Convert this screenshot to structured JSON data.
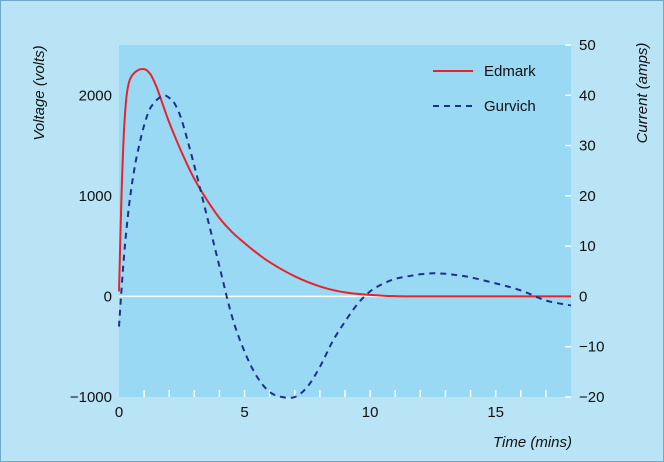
{
  "chart_data": {
    "type": "line",
    "xlabel": "Time (mins)",
    "ylabel_left": "Voltage (volts)",
    "ylabel_right": "Current (amps)",
    "xlim": [
      0,
      18
    ],
    "ylim_left": [
      -1000,
      2500
    ],
    "ylim_right": [
      -20,
      50
    ],
    "x_ticks": [
      0,
      5,
      10,
      15
    ],
    "y_ticks_left": [
      -1000,
      0,
      1000,
      2000
    ],
    "y_ticks_left_labels": [
      "−1000",
      "0",
      "1000",
      "2000"
    ],
    "y_ticks_right": [
      -20,
      -10,
      0,
      10,
      20,
      30,
      40,
      50
    ],
    "y_ticks_right_labels": [
      "−20",
      "−10",
      "0",
      "10",
      "20",
      "30",
      "40",
      "50"
    ],
    "zero_line": true,
    "legend_position": "top-right",
    "colors": {
      "plot_bg": "#99d9f4",
      "outer_bg": "#b9e4f6",
      "edmark": "#e8232b",
      "gurvich": "#1e2f8c",
      "zero_line": "#ffffff"
    },
    "series": [
      {
        "name": "Edmark",
        "style": "solid",
        "x": [
          0,
          0.1,
          0.2,
          0.3,
          0.4,
          0.5,
          0.6,
          0.7,
          0.8,
          0.9,
          1.0,
          1.1,
          1.2,
          1.3,
          1.5,
          1.7,
          2.0,
          2.5,
          3.0,
          3.5,
          4.0,
          4.5,
          5.0,
          5.5,
          6.0,
          7.0,
          8.0,
          9.0,
          10.0,
          11.0,
          12.0,
          14.0,
          16.0,
          18.0
        ],
        "y": [
          50,
          1000,
          1650,
          1990,
          2130,
          2190,
          2220,
          2240,
          2255,
          2260,
          2260,
          2250,
          2225,
          2190,
          2080,
          1940,
          1730,
          1430,
          1170,
          960,
          780,
          640,
          530,
          430,
          340,
          200,
          100,
          40,
          15,
          3,
          0,
          0,
          0,
          0
        ]
      },
      {
        "name": "Gurvich",
        "style": "dashed",
        "x": [
          0,
          0.2,
          0.4,
          0.6,
          0.8,
          1.0,
          1.2,
          1.4,
          1.6,
          1.8,
          2.0,
          2.2,
          2.5,
          3.0,
          3.5,
          4.0,
          4.5,
          5.0,
          5.5,
          6.0,
          6.5,
          7.0,
          7.5,
          8.0,
          8.5,
          9.0,
          9.5,
          10.0,
          10.5,
          11.0,
          11.5,
          12.0,
          12.5,
          13.0,
          13.5,
          14.0,
          15.0,
          16.0,
          17.0,
          18.0
        ],
        "y": [
          -6,
          8,
          18,
          25,
          30,
          34,
          37,
          38.5,
          39.5,
          40,
          39.5,
          38.5,
          35,
          26,
          16,
          6,
          -4,
          -11,
          -16,
          -19,
          -20,
          -20,
          -18,
          -14,
          -9,
          -5,
          -1.5,
          1,
          2.5,
          3.5,
          4,
          4.4,
          4.6,
          4.5,
          4.2,
          3.8,
          2.6,
          1.2,
          -0.8,
          -1.8
        ]
      }
    ]
  }
}
